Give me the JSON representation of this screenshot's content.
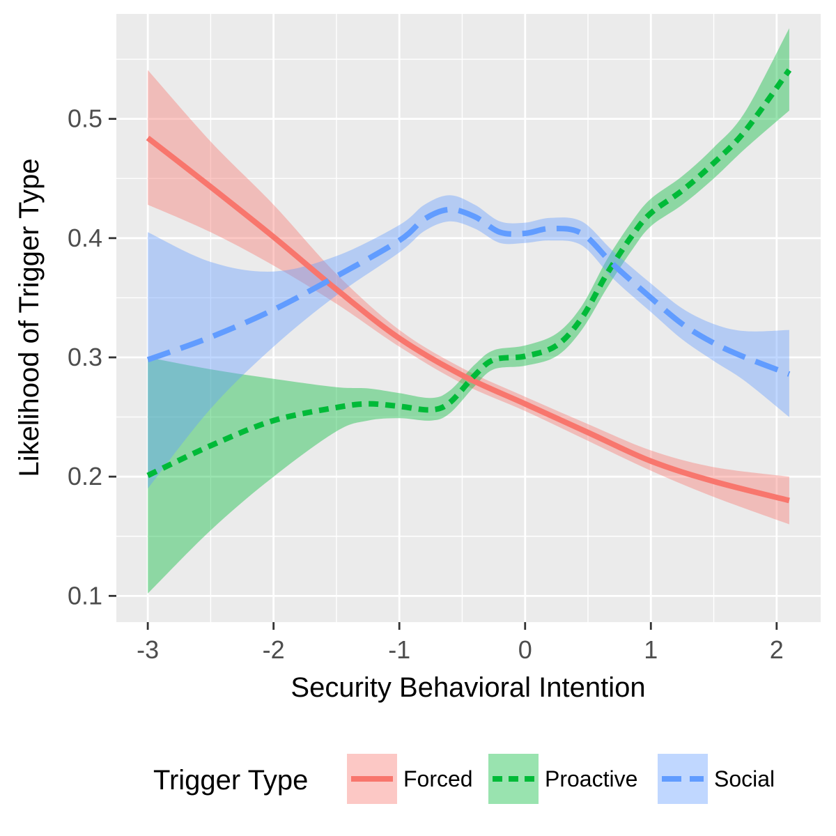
{
  "chart_data": {
    "type": "line",
    "xlabel": "Security Behavioral Intention",
    "ylabel": "Likelihood of Trigger Type",
    "xlim": [
      -3.25,
      2.35
    ],
    "ylim": [
      0.078,
      0.588
    ],
    "x_ticks": [
      -3,
      -2,
      -1,
      0,
      1,
      2
    ],
    "x_tick_labels": [
      "-3",
      "-2",
      "-1",
      "0",
      "1",
      "2"
    ],
    "y_ticks": [
      0.1,
      0.2,
      0.3,
      0.4,
      0.5
    ],
    "y_tick_labels": [
      "0.1",
      "0.2",
      "0.3",
      "0.4",
      "0.5"
    ],
    "grid": true,
    "legend": {
      "title": "Trigger Type",
      "position": "bottom"
    },
    "series": [
      {
        "name": "Forced",
        "color": "#F8766D",
        "linestyle": "solid",
        "points": [
          {
            "x": -3.0,
            "y": 0.484,
            "lo": 0.428,
            "hi": 0.541
          },
          {
            "x": -2.5,
            "y": 0.443,
            "lo": 0.405,
            "hi": 0.481
          },
          {
            "x": -2.0,
            "y": 0.401,
            "lo": 0.377,
            "hi": 0.428
          },
          {
            "x": -1.5,
            "y": 0.357,
            "lo": 0.345,
            "hi": 0.37
          },
          {
            "x": -1.0,
            "y": 0.316,
            "lo": 0.309,
            "hi": 0.323
          },
          {
            "x": -0.5,
            "y": 0.285,
            "lo": 0.278,
            "hi": 0.291
          },
          {
            "x": 0.0,
            "y": 0.261,
            "lo": 0.255,
            "hi": 0.267
          },
          {
            "x": 0.5,
            "y": 0.237,
            "lo": 0.23,
            "hi": 0.244
          },
          {
            "x": 1.0,
            "y": 0.213,
            "lo": 0.205,
            "hi": 0.222
          },
          {
            "x": 1.5,
            "y": 0.196,
            "lo": 0.183,
            "hi": 0.208
          },
          {
            "x": 2.1,
            "y": 0.18,
            "lo": 0.16,
            "hi": 0.2
          }
        ]
      },
      {
        "name": "Proactive",
        "color": "#00BA38",
        "linestyle": "dotted",
        "points": [
          {
            "x": -3.0,
            "y": 0.201,
            "lo": 0.102,
            "hi": 0.3
          },
          {
            "x": -2.5,
            "y": 0.226,
            "lo": 0.155,
            "hi": 0.29
          },
          {
            "x": -2.0,
            "y": 0.247,
            "lo": 0.2,
            "hi": 0.282
          },
          {
            "x": -1.5,
            "y": 0.258,
            "lo": 0.238,
            "hi": 0.275
          },
          {
            "x": -1.25,
            "y": 0.261,
            "lo": 0.247,
            "hi": 0.274
          },
          {
            "x": -1.0,
            "y": 0.259,
            "lo": 0.249,
            "hi": 0.27
          },
          {
            "x": -0.75,
            "y": 0.256,
            "lo": 0.247,
            "hi": 0.266
          },
          {
            "x": -0.6,
            "y": 0.262,
            "lo": 0.253,
            "hi": 0.272
          },
          {
            "x": -0.4,
            "y": 0.285,
            "lo": 0.276,
            "hi": 0.294
          },
          {
            "x": -0.25,
            "y": 0.298,
            "lo": 0.29,
            "hi": 0.306
          },
          {
            "x": 0.0,
            "y": 0.301,
            "lo": 0.293,
            "hi": 0.31
          },
          {
            "x": 0.25,
            "y": 0.31,
            "lo": 0.301,
            "hi": 0.32
          },
          {
            "x": 0.45,
            "y": 0.333,
            "lo": 0.323,
            "hi": 0.343
          },
          {
            "x": 0.65,
            "y": 0.37,
            "lo": 0.358,
            "hi": 0.382
          },
          {
            "x": 0.85,
            "y": 0.402,
            "lo": 0.39,
            "hi": 0.414
          },
          {
            "x": 1.0,
            "y": 0.421,
            "lo": 0.41,
            "hi": 0.433
          },
          {
            "x": 1.25,
            "y": 0.44,
            "lo": 0.428,
            "hi": 0.452
          },
          {
            "x": 1.5,
            "y": 0.463,
            "lo": 0.45,
            "hi": 0.476
          },
          {
            "x": 1.75,
            "y": 0.49,
            "lo": 0.475,
            "hi": 0.506
          },
          {
            "x": 2.1,
            "y": 0.541,
            "lo": 0.507,
            "hi": 0.576
          }
        ]
      },
      {
        "name": "Social",
        "color": "#619CFF",
        "linestyle": "dashed",
        "points": [
          {
            "x": -3.0,
            "y": 0.298,
            "lo": 0.19,
            "hi": 0.405
          },
          {
            "x": -2.5,
            "y": 0.317,
            "lo": 0.257,
            "hi": 0.38
          },
          {
            "x": -2.0,
            "y": 0.34,
            "lo": 0.309,
            "hi": 0.372
          },
          {
            "x": -1.5,
            "y": 0.368,
            "lo": 0.352,
            "hi": 0.385
          },
          {
            "x": -1.0,
            "y": 0.398,
            "lo": 0.388,
            "hi": 0.411
          },
          {
            "x": -0.8,
            "y": 0.416,
            "lo": 0.406,
            "hi": 0.428
          },
          {
            "x": -0.6,
            "y": 0.424,
            "lo": 0.414,
            "hi": 0.436
          },
          {
            "x": -0.4,
            "y": 0.418,
            "lo": 0.408,
            "hi": 0.428
          },
          {
            "x": -0.2,
            "y": 0.405,
            "lo": 0.396,
            "hi": 0.414
          },
          {
            "x": 0.0,
            "y": 0.404,
            "lo": 0.396,
            "hi": 0.413
          },
          {
            "x": 0.2,
            "y": 0.408,
            "lo": 0.398,
            "hi": 0.417
          },
          {
            "x": 0.45,
            "y": 0.404,
            "lo": 0.394,
            "hi": 0.414
          },
          {
            "x": 0.7,
            "y": 0.378,
            "lo": 0.366,
            "hi": 0.389
          },
          {
            "x": 1.0,
            "y": 0.35,
            "lo": 0.338,
            "hi": 0.362
          },
          {
            "x": 1.25,
            "y": 0.328,
            "lo": 0.315,
            "hi": 0.341
          },
          {
            "x": 1.5,
            "y": 0.312,
            "lo": 0.297,
            "hi": 0.328
          },
          {
            "x": 1.75,
            "y": 0.3,
            "lo": 0.28,
            "hi": 0.322
          },
          {
            "x": 2.1,
            "y": 0.286,
            "lo": 0.25,
            "hi": 0.323
          }
        ]
      }
    ]
  }
}
